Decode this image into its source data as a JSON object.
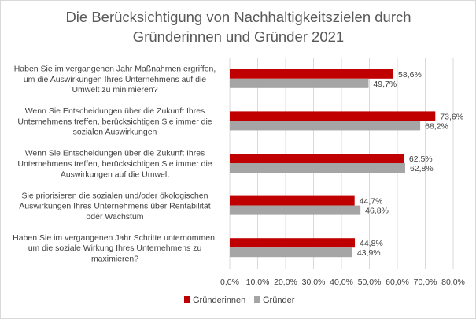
{
  "chart_data": {
    "type": "bar",
    "orientation": "horizontal",
    "title": [
      "Die Berücksichtigung von Nachhaltigkeitszielen durch",
      "Gründerinnen und Gründer 2021"
    ],
    "categories": [
      [
        "Haben Sie im vergangenen Jahr Maßnahmen ergriffen,",
        "um die Auswirkungen Ihres Unternehmens auf die",
        "Umwelt zu minimieren?"
      ],
      [
        "Wenn Sie Entscheidungen über die Zukunft Ihres",
        "Unternehmens treffen, berücksichtigen Sie immer die",
        "sozialen Auswirkungen"
      ],
      [
        "Wenn Sie Entscheidungen über die Zukunft Ihres",
        "Unternehmens treffen, berücksichtigen Sie immer die",
        "Auswirkungen auf die Umwelt"
      ],
      [
        "Sie priorisieren die sozialen und/oder ökologischen",
        "Auswirkungen Ihres Unternehmens über Rentabilität",
        "oder Wachstum"
      ],
      [
        "Haben Sie im vergangenen Jahr Schritte unternommen,",
        "um die soziale Wirkung Ihres Unternehmens zu",
        "maximieren?"
      ]
    ],
    "series": [
      {
        "name": "Gründerinnen",
        "color": "#c00000",
        "values": [
          58.6,
          73.6,
          62.5,
          44.7,
          44.8
        ],
        "labels": [
          "58,6%",
          "73,6%",
          "62,5%",
          "44,7%",
          "44,8%"
        ]
      },
      {
        "name": "Gründer",
        "color": "#a5a5a5",
        "values": [
          49.7,
          68.2,
          62.8,
          46.8,
          43.9
        ],
        "labels": [
          "49,7%",
          "68,2%",
          "62,8%",
          "46,8%",
          "43,9%"
        ]
      }
    ],
    "xlim": [
      0,
      80
    ],
    "xticks": [
      "0,0%",
      "10,0%",
      "20,0%",
      "30,0%",
      "40,0%",
      "50,0%",
      "60,0%",
      "70,0%",
      "80,0%"
    ],
    "grid": true,
    "legend": "bottom"
  }
}
